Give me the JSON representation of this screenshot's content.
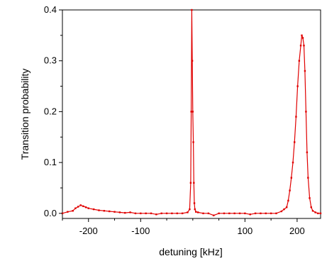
{
  "chart_data": {
    "type": "line",
    "title": "",
    "xlabel": "detuning [kHz]",
    "ylabel": "Transition probability",
    "xlim": [
      -250,
      245
    ],
    "ylim": [
      -0.01,
      0.4
    ],
    "x_ticks": [
      -200,
      -100,
      100,
      200
    ],
    "x_tick_labels": [
      "-200",
      "-100",
      "100",
      "200"
    ],
    "y_ticks": [
      0.0,
      0.1,
      0.2,
      0.3,
      0.4
    ],
    "y_tick_labels": [
      "0.0",
      "0.1",
      "0.2",
      "0.3",
      "0.4"
    ],
    "grid": false,
    "legend": "none",
    "series_color": "#e00000",
    "series": [
      {
        "x": [
          -250,
          -240,
          -230,
          -225,
          -220,
          -215,
          -210,
          -205,
          -200,
          -190,
          -180,
          -170,
          -160,
          -150,
          -140,
          -130,
          -120,
          -110,
          -100,
          -90,
          -80,
          -70,
          -60,
          -50,
          -40,
          -30,
          -20,
          -10,
          -6,
          -4,
          -3,
          -2,
          -1,
          0,
          1,
          2,
          3,
          4,
          6,
          10,
          20,
          30,
          40,
          50,
          60,
          70,
          80,
          90,
          100,
          110,
          120,
          130,
          140,
          150,
          160,
          170,
          175,
          180,
          183,
          186,
          189,
          192,
          195,
          198,
          201,
          204,
          207,
          209,
          211,
          213,
          215,
          217,
          219,
          221,
          224,
          227,
          230,
          235,
          240,
          245
        ],
        "y": [
          0.0,
          0.003,
          0.005,
          0.01,
          0.013,
          0.016,
          0.014,
          0.012,
          0.01,
          0.008,
          0.006,
          0.005,
          0.004,
          0.003,
          0.002,
          0.001,
          0.002,
          0.0,
          0.0,
          0.0,
          0.0,
          -0.002,
          0.0,
          0.0,
          0.0,
          0.0,
          0.0,
          0.002,
          0.008,
          0.06,
          0.2,
          0.4,
          0.3,
          0.2,
          0.14,
          0.06,
          0.02,
          0.008,
          0.003,
          0.002,
          0.0,
          0.0,
          -0.004,
          0.0,
          0.0,
          0.0,
          0.0,
          0.0,
          0.0,
          -0.002,
          0.0,
          0.0,
          0.0,
          0.0,
          0.0,
          0.004,
          0.008,
          0.012,
          0.025,
          0.045,
          0.07,
          0.1,
          0.14,
          0.19,
          0.25,
          0.3,
          0.33,
          0.35,
          0.345,
          0.33,
          0.28,
          0.2,
          0.12,
          0.07,
          0.03,
          0.012,
          0.005,
          0.002,
          0.0,
          0.0
        ]
      }
    ]
  }
}
